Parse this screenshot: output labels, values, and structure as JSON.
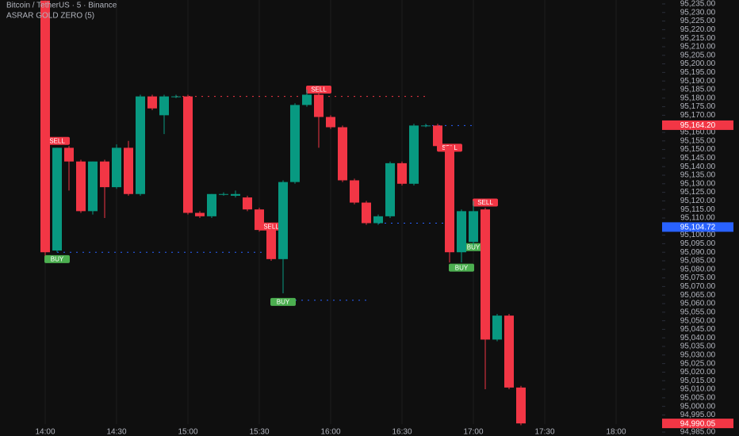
{
  "chart_data": {
    "type": "candlestick",
    "title": "Bitcoin / TetherUS · 5 · Binance",
    "subtitle": "ASRAR GOLD ZERO (5)",
    "up_color": "#089981",
    "down_color": "#f23645",
    "x": [
      "14:00",
      "14:05",
      "14:10",
      "14:15",
      "14:20",
      "14:25",
      "14:30",
      "14:35",
      "14:40",
      "14:45",
      "14:50",
      "14:55",
      "15:00",
      "15:05",
      "15:10",
      "15:15",
      "15:20",
      "15:25",
      "15:30",
      "15:35",
      "15:40",
      "15:45",
      "15:50",
      "15:55",
      "16:00",
      "16:05",
      "16:10",
      "16:15",
      "16:20",
      "16:25",
      "16:30",
      "16:35",
      "16:40",
      "16:45",
      "16:50",
      "16:55",
      "17:00",
      "17:05",
      "17:10",
      "17:15",
      "17:20"
    ],
    "open": [
      95237,
      95091,
      95151,
      95143,
      95114,
      95143,
      95128,
      95151,
      95124,
      95181,
      95170,
      95181,
      95181,
      95113,
      95111,
      95124,
      95123,
      95122,
      95115,
      95103,
      95086,
      95131,
      95176,
      95182,
      95169,
      95163,
      95132,
      95119,
      95107,
      95111,
      95142,
      95130,
      95164,
      95164,
      95152,
      95090,
      95096,
      95115,
      95039,
      95053,
      95011
    ],
    "high": [
      95237,
      95151,
      95152,
      95144,
      95143,
      95144,
      95153,
      95155,
      95182,
      95182,
      95182,
      95182,
      95182,
      95114,
      95124,
      95125,
      95126,
      95123,
      95116,
      95104,
      95132,
      95177,
      95185,
      95183,
      95170,
      95164,
      95133,
      95120,
      95112,
      95143,
      95143,
      95165,
      95165,
      95165,
      95153,
      95115,
      95120,
      95116,
      95054,
      95054,
      95012
    ],
    "low": [
      95088,
      95090,
      95126,
      95113,
      95112,
      95110,
      95127,
      95123,
      95123,
      95173,
      95159,
      95180,
      95112,
      95110,
      95110,
      95123,
      95122,
      95114,
      95102,
      95085,
      95066,
      95130,
      95175,
      95151,
      95162,
      95131,
      95118,
      95106,
      95106,
      95110,
      95129,
      95129,
      95163,
      95151,
      95084,
      95084,
      95094,
      95010,
      95038,
      95010,
      94989
    ],
    "close": [
      95090,
      95151,
      95143,
      95114,
      95143,
      95128,
      95151,
      95124,
      95181,
      95174,
      95181,
      95181,
      95113,
      95111,
      95124,
      95124,
      95124,
      95115,
      95103,
      95086,
      95131,
      95176,
      95182,
      95169,
      95163,
      95132,
      95119,
      95107,
      95111,
      95142,
      95130,
      95164,
      95164,
      95152,
      95090,
      95114,
      95114,
      95039,
      95053,
      95011,
      94990.05
    ],
    "ylim": [
      94982.7,
      95237.3
    ],
    "yticks": [
      {
        "value": 94985,
        "label": "94,985.00"
      },
      {
        "value": 94990,
        "label": "94,990.00"
      },
      {
        "value": 94995,
        "label": "94,995.00"
      },
      {
        "value": 95000,
        "label": "95,000.00"
      },
      {
        "value": 95005,
        "label": "95,005.00"
      },
      {
        "value": 95010,
        "label": "95,010.00"
      },
      {
        "value": 95015,
        "label": "95,015.00"
      },
      {
        "value": 95020,
        "label": "95,020.00"
      },
      {
        "value": 95025,
        "label": "95,025.00"
      },
      {
        "value": 95030,
        "label": "95,030.00"
      },
      {
        "value": 95035,
        "label": "95,035.00"
      },
      {
        "value": 95040,
        "label": "95,040.00"
      },
      {
        "value": 95045,
        "label": "95,045.00"
      },
      {
        "value": 95050,
        "label": "95,050.00"
      },
      {
        "value": 95055,
        "label": "95,055.00"
      },
      {
        "value": 95060,
        "label": "95,060.00"
      },
      {
        "value": 95065,
        "label": "95,065.00"
      },
      {
        "value": 95070,
        "label": "95,070.00"
      },
      {
        "value": 95075,
        "label": "95,075.00"
      },
      {
        "value": 95080,
        "label": "95,080.00"
      },
      {
        "value": 95085,
        "label": "95,085.00"
      },
      {
        "value": 95090,
        "label": "95,090.00"
      },
      {
        "value": 95095,
        "label": "95,095.00"
      },
      {
        "value": 95100,
        "label": "95,100.00"
      },
      {
        "value": 95105,
        "label": "95,105.00"
      },
      {
        "value": 95110,
        "label": "95,110.00"
      },
      {
        "value": 95115,
        "label": "95,115.00"
      },
      {
        "value": 95120,
        "label": "95,120.00"
      },
      {
        "value": 95125,
        "label": "95,125.00"
      },
      {
        "value": 95130,
        "label": "95,130.00"
      },
      {
        "value": 95135,
        "label": "95,135.00"
      },
      {
        "value": 95140,
        "label": "95,140.00"
      },
      {
        "value": 95145,
        "label": "95,145.00"
      },
      {
        "value": 95150,
        "label": "95,150.00"
      },
      {
        "value": 95155,
        "label": "95,155.00"
      },
      {
        "value": 95160,
        "label": "95,160.00"
      },
      {
        "value": 95165,
        "label": "95,165.00"
      },
      {
        "value": 95170,
        "label": "95,170.00"
      },
      {
        "value": 95175,
        "label": "95,175.00"
      },
      {
        "value": 95180,
        "label": "95,180.00"
      },
      {
        "value": 95185,
        "label": "95,185.00"
      },
      {
        "value": 95190,
        "label": "95,190.00"
      },
      {
        "value": 95195,
        "label": "95,195.00"
      },
      {
        "value": 95200,
        "label": "95,200.00"
      },
      {
        "value": 95205,
        "label": "95,205.00"
      },
      {
        "value": 95210,
        "label": "95,210.00"
      },
      {
        "value": 95215,
        "label": "95,215.00"
      },
      {
        "value": 95220,
        "label": "95,220.00"
      },
      {
        "value": 95225,
        "label": "95,225.00"
      },
      {
        "value": 95230,
        "label": "95,230.00"
      },
      {
        "value": 95235,
        "label": "95,235.00"
      }
    ],
    "xticks": [
      "14:00",
      "14:30",
      "15:00",
      "15:30",
      "16:00",
      "16:30",
      "17:00",
      "17:30",
      "18:00"
    ],
    "grid": true,
    "price_labels": [
      {
        "value": 95164.2,
        "label": "95,164.20",
        "color": "#f23645"
      },
      {
        "value": 95104.72,
        "label": "95,104.72",
        "color": "#2962ff"
      },
      {
        "value": 94990.05,
        "label": "94,990.05",
        "color": "#f23645"
      }
    ],
    "levels": [
      {
        "value": 95181,
        "from": "14:55",
        "to": "16:40",
        "color": "#f23645"
      },
      {
        "value": 95090,
        "from": "14:05",
        "to": "15:35",
        "color": "#2962ff"
      },
      {
        "value": 95062,
        "from": "15:45",
        "to": "16:15",
        "color": "#2962ff"
      },
      {
        "value": 95107,
        "from": "16:20",
        "to": "16:50",
        "color": "#2962ff"
      },
      {
        "value": 95164,
        "from": "16:40",
        "to": "17:00",
        "color": "#2962ff"
      }
    ],
    "annotations": [
      {
        "text": "SELL",
        "time": "14:05",
        "price": 95155,
        "color": "#f23645"
      },
      {
        "text": "BUY",
        "time": "14:05",
        "price": 95086,
        "color": "#4caf50"
      },
      {
        "text": "SELL",
        "time": "15:35",
        "price": 95105,
        "color": "#f23645"
      },
      {
        "text": "BUY",
        "time": "15:40",
        "price": 95061,
        "color": "#4caf50"
      },
      {
        "text": "SELL",
        "time": "15:55",
        "price": 95185,
        "color": "#f23645"
      },
      {
        "text": "SELL",
        "time": "16:50",
        "price": 95151,
        "color": "#f23645"
      },
      {
        "text": "BUY",
        "time": "16:55",
        "price": 95081,
        "color": "#4caf50"
      },
      {
        "text": "BUY",
        "time": "17:00",
        "price": 95093,
        "color": "#4caf50"
      },
      {
        "text": "SELL",
        "time": "17:05",
        "price": 95119,
        "color": "#f23645"
      }
    ]
  }
}
